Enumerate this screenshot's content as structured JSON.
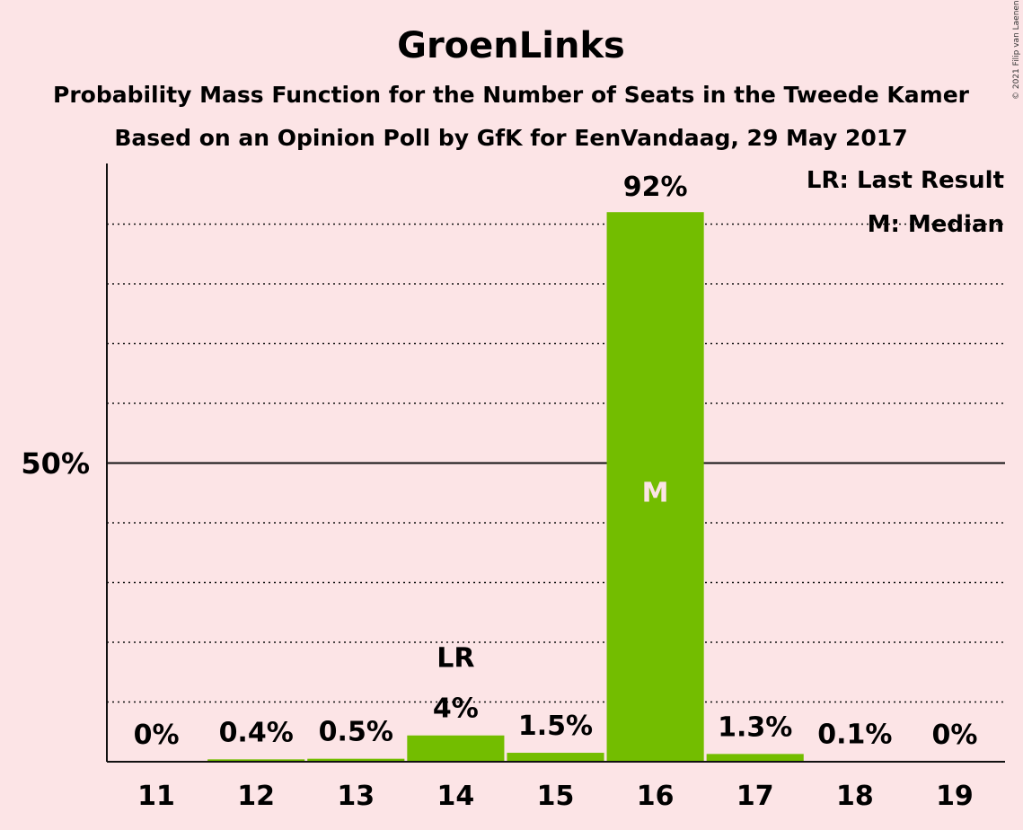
{
  "title": "GroenLinks",
  "subtitle_1": "Probability Mass Function for the Number of Seats in the Tweede Kamer",
  "subtitle_2": "Based on an Opinion Poll by GfK for EenVandaag, 29 May 2017",
  "credit": "© 2021 Filip van Laenen",
  "legend": {
    "last_result": "LR: Last Result",
    "median": "M: Median"
  },
  "y_tick_label": "50%",
  "colors": {
    "bar": "#73bd00",
    "background": "#fce4e6",
    "axis": "#111111"
  },
  "chart_data": {
    "type": "bar",
    "categories": [
      "11",
      "12",
      "13",
      "14",
      "15",
      "16",
      "17",
      "18",
      "19"
    ],
    "values": [
      0,
      0.4,
      0.5,
      4.4,
      1.5,
      92,
      1.3,
      0.1,
      0
    ],
    "value_labels": [
      "0%",
      "0.4%",
      "0.5%",
      "4%",
      "1.5%",
      "92%",
      "1.3%",
      "0.1%",
      "0%"
    ],
    "ylim": [
      0,
      100
    ],
    "y_ticks": [
      50
    ],
    "y_tick_labels": [
      "50%"
    ],
    "grid": "dotted every 10%",
    "last_result": {
      "category": "14",
      "label": "LR"
    },
    "median": {
      "category": "16",
      "label": "M"
    },
    "legend_position": "top-right"
  }
}
